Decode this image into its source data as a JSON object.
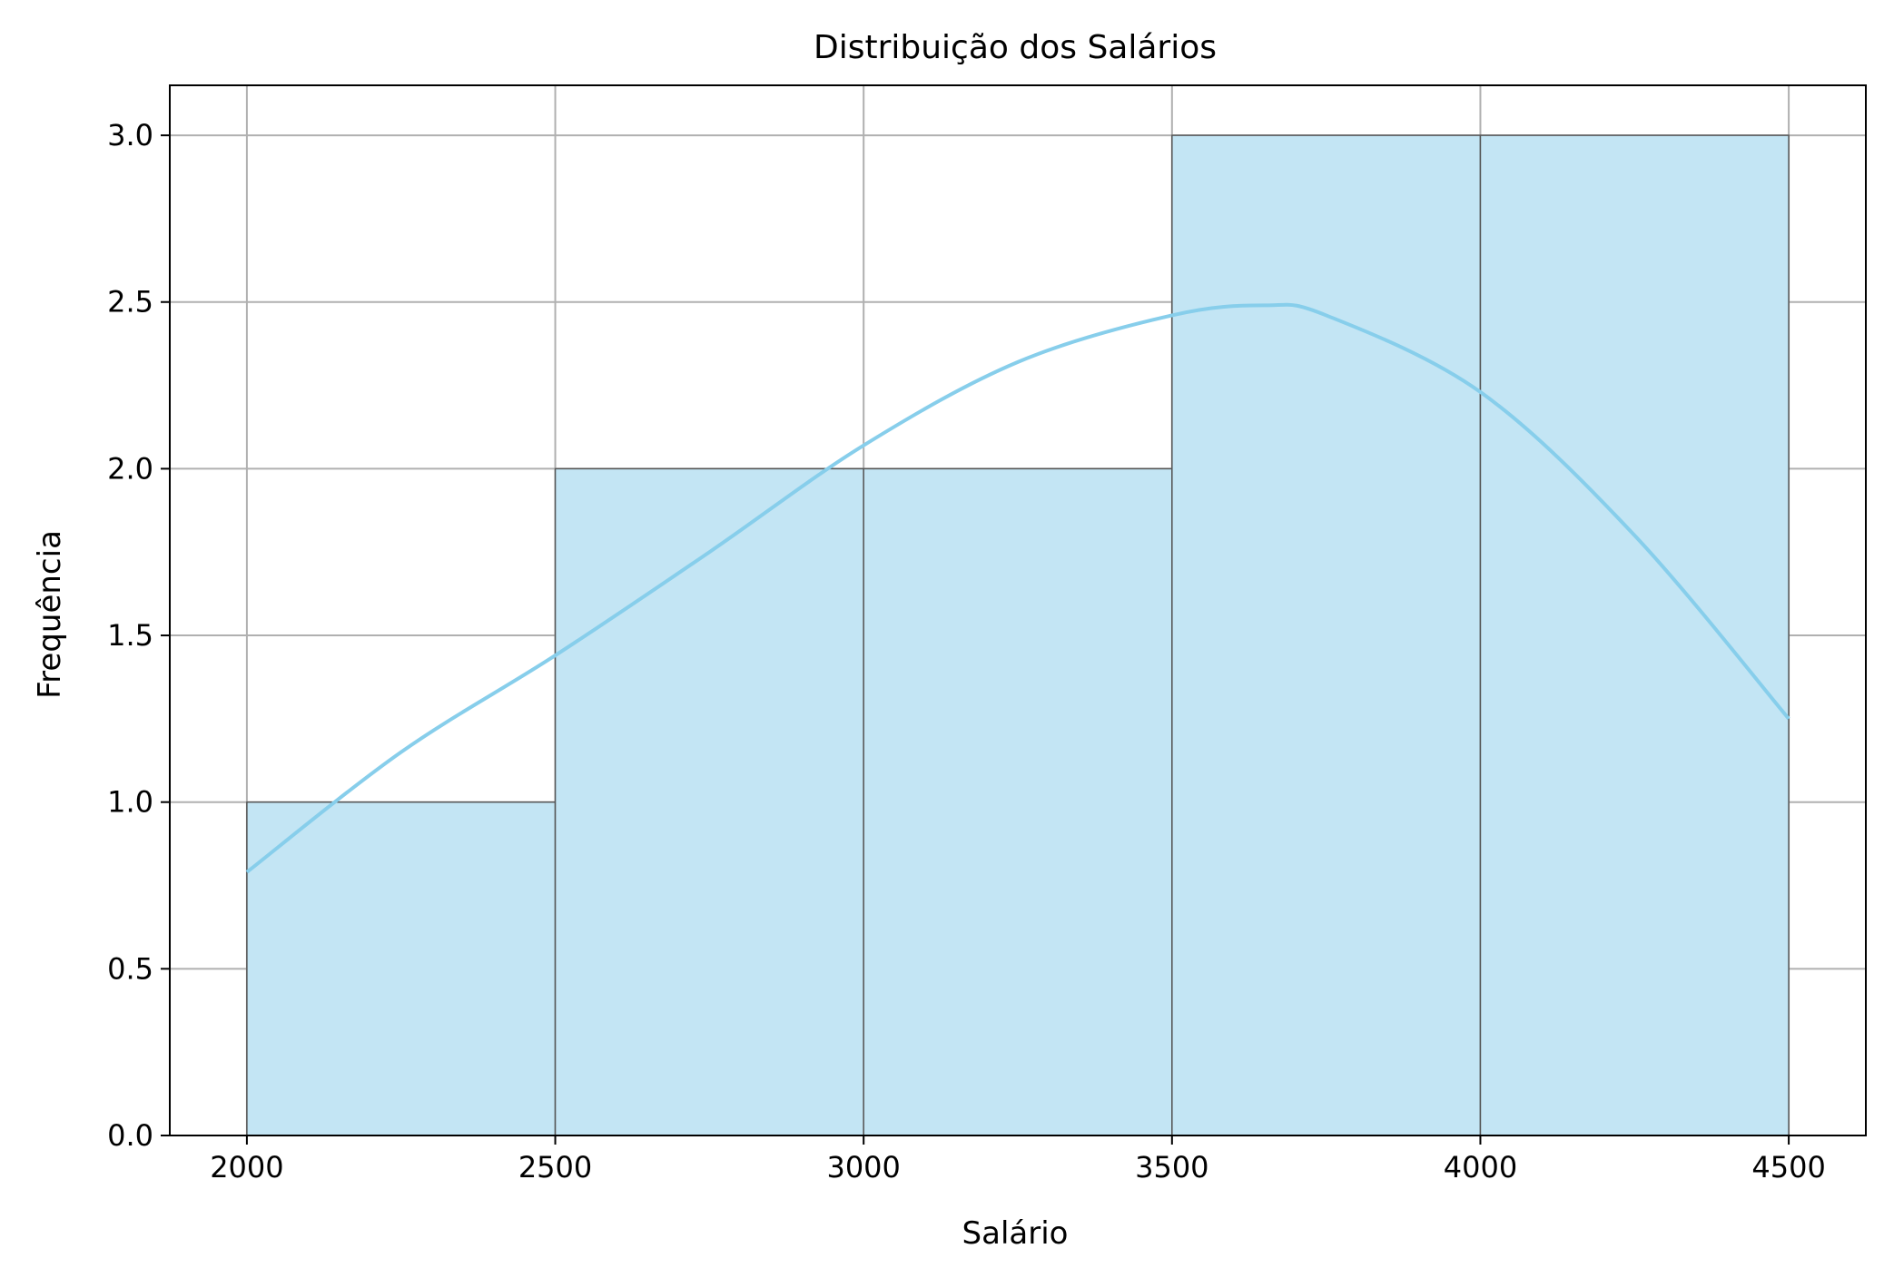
{
  "chart_data": {
    "type": "bar",
    "title": "Distribuição dos Salários",
    "xlabel": "Salário",
    "ylabel": "Frequência",
    "bins": [
      {
        "start": 2000,
        "end": 2500,
        "count": 1
      },
      {
        "start": 2500,
        "end": 3000,
        "count": 2
      },
      {
        "start": 3000,
        "end": 3500,
        "count": 2
      },
      {
        "start": 3500,
        "end": 4000,
        "count": 3
      },
      {
        "start": 4000,
        "end": 4500,
        "count": 3
      }
    ],
    "kde": {
      "x": [
        2000,
        2250,
        2500,
        2750,
        3000,
        3250,
        3500,
        3650,
        3750,
        4000,
        4250,
        4500
      ],
      "y": [
        0.79,
        1.15,
        1.44,
        1.75,
        2.07,
        2.32,
        2.46,
        2.49,
        2.46,
        2.23,
        1.8,
        1.25
      ]
    },
    "xticks": [
      2000,
      2500,
      3000,
      3500,
      4000,
      4500
    ],
    "xtick_labels": [
      "2000",
      "2500",
      "3000",
      "3500",
      "4000",
      "4500"
    ],
    "yticks": [
      0.0,
      0.5,
      1.0,
      1.5,
      2.0,
      2.5,
      3.0
    ],
    "ytick_labels": [
      "0.0",
      "0.5",
      "1.0",
      "1.5",
      "2.0",
      "2.5",
      "3.0"
    ],
    "xlim": [
      1875,
      4625
    ],
    "ylim": [
      0,
      3.15
    ],
    "grid": true,
    "colors": {
      "bar_fill": "#c3e5f4",
      "bar_edge": "#555555",
      "kde_line": "#87ceeb",
      "grid": "#b0b0b0"
    }
  }
}
